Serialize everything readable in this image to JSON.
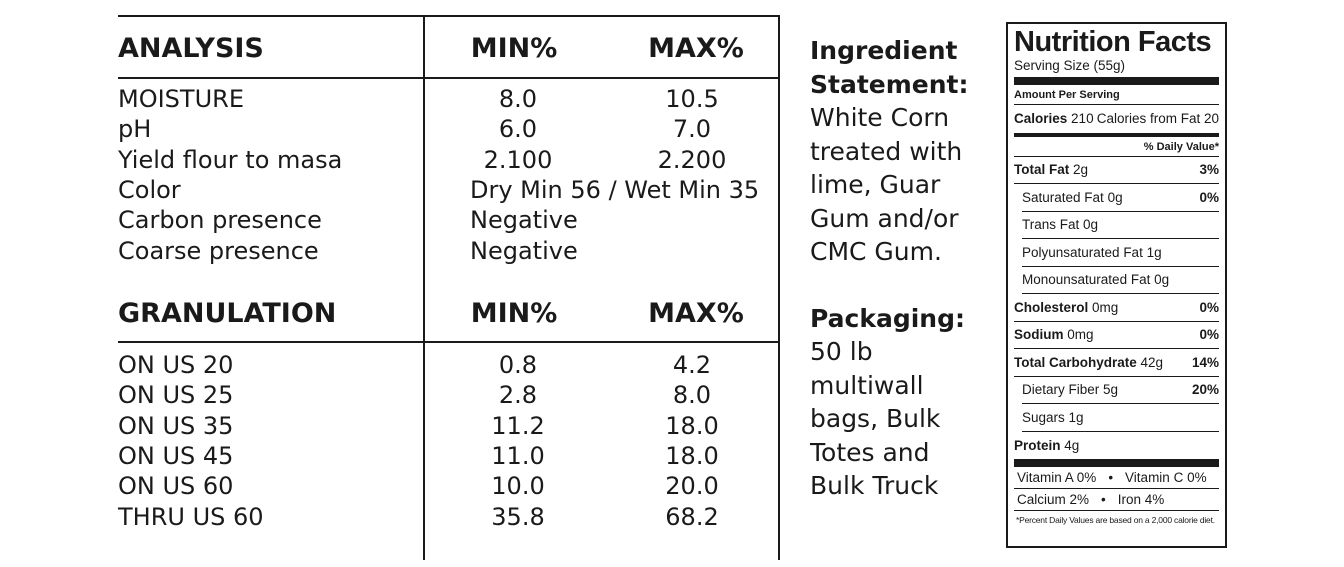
{
  "analysis": {
    "header": {
      "label": "ANALYSIS",
      "min": "MIN%",
      "max": "MAX%"
    },
    "rows": [
      {
        "label": "MOISTURE",
        "min": "8.0",
        "max": "10.5"
      },
      {
        "label": "pH",
        "min": "6.0",
        "max": "7.0"
      },
      {
        "label": "Yield flour to masa",
        "min": "2.100",
        "max": "2.200"
      },
      {
        "label": "Color",
        "span": "Dry Min 56 / Wet Min 35"
      },
      {
        "label": "Carbon presence",
        "span": "Negative"
      },
      {
        "label": "Coarse presence",
        "span": "Negative"
      }
    ]
  },
  "granulation": {
    "header": {
      "label": "GRANULATION",
      "min": "MIN%",
      "max": "MAX%"
    },
    "rows": [
      {
        "label": "ON US 20",
        "min": "0.8",
        "max": "4.2"
      },
      {
        "label": "ON US 25",
        "min": "2.8",
        "max": "8.0"
      },
      {
        "label": "ON US 35",
        "min": "11.2",
        "max": "18.0"
      },
      {
        "label": "ON US 45",
        "min": "11.0",
        "max": "18.0"
      },
      {
        "label": "ON US 60",
        "min": "10.0",
        "max": "20.0"
      },
      {
        "label": "THRU US 60",
        "min": "35.8",
        "max": "68.2"
      }
    ]
  },
  "ingredient": {
    "heading": [
      "Ingredient",
      "Statement:"
    ],
    "lines": [
      "White Corn",
      "treated with",
      "lime, Guar",
      "Gum and/or",
      "CMC Gum."
    ]
  },
  "packaging": {
    "heading": "Packaging:",
    "lines": [
      "50 lb",
      "multiwall",
      "bags, Bulk",
      "Totes and",
      "Bulk Truck"
    ]
  },
  "nutrition": {
    "title": "Nutrition Facts",
    "serving": "Serving Size (55g)",
    "amount_per_serving": "Amount Per Serving",
    "calories_label": "Calories",
    "calories_value": "210",
    "calories_fat": "Calories from Fat 20",
    "dv_header": "% Daily Value*",
    "rows": [
      {
        "label": "Total Fat",
        "amount": "2g",
        "dv": "3%",
        "bold": true,
        "indent": false
      },
      {
        "label": "Saturated Fat",
        "amount": "0g",
        "dv": "0%",
        "bold": false,
        "indent": true
      },
      {
        "label": "Trans Fat",
        "amount": "0g",
        "dv": "",
        "bold": false,
        "indent": true
      },
      {
        "label": "Polyunsaturated Fat",
        "amount": "1g",
        "dv": "",
        "bold": false,
        "indent": true
      },
      {
        "label": "Monounsaturated Fat",
        "amount": "0g",
        "dv": "",
        "bold": false,
        "indent": true
      },
      {
        "label": "Cholesterol",
        "amount": "0mg",
        "dv": "0%",
        "bold": true,
        "indent": false
      },
      {
        "label": "Sodium",
        "amount": "0mg",
        "dv": "0%",
        "bold": true,
        "indent": false
      },
      {
        "label": "Total Carbohydrate",
        "amount": "42g",
        "dv": "14%",
        "bold": true,
        "indent": false
      },
      {
        "label": "Dietary Fiber",
        "amount": "5g",
        "dv": "20%",
        "bold": false,
        "indent": true
      },
      {
        "label": "Sugars",
        "amount": "1g",
        "dv": "",
        "bold": false,
        "indent": true
      },
      {
        "label": "Protein",
        "amount": "4g",
        "dv": "",
        "bold": true,
        "indent": false
      }
    ],
    "vitamins": [
      [
        "Vitamin A 0%",
        "Vitamin C 0%"
      ],
      [
        "Calcium 2%",
        "Iron 4%"
      ]
    ],
    "footnote": "*Percent Daily Values are based on a 2,000 calorie diet."
  }
}
